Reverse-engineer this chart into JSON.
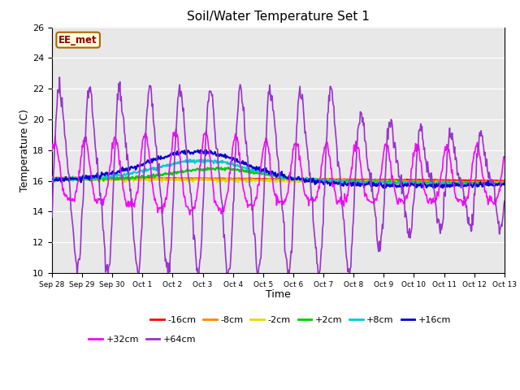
{
  "title": "Soil/Water Temperature Set 1",
  "xlabel": "Time",
  "ylabel": "Temperature (C)",
  "ylim": [
    10,
    26
  ],
  "yticks": [
    10,
    12,
    14,
    16,
    18,
    20,
    22,
    24,
    26
  ],
  "annotation_text": "EE_met",
  "annotation_bgcolor": "#ffffdd",
  "annotation_edgecolor": "#aa6600",
  "annotation_textcolor": "#880000",
  "bg_color": "#e8e8e8",
  "fig_color": "#ffffff",
  "series_order": [
    "-16cm",
    "-8cm",
    "-2cm",
    "+2cm",
    "+8cm",
    "+16cm",
    "+32cm",
    "+64cm"
  ],
  "series": {
    "-16cm": {
      "color": "#ff0000",
      "lw": 1.5
    },
    "-8cm": {
      "color": "#ff8800",
      "lw": 1.5
    },
    "-2cm": {
      "color": "#dddd00",
      "lw": 1.5
    },
    "+2cm": {
      "color": "#00cc00",
      "lw": 1.5
    },
    "+8cm": {
      "color": "#00cccc",
      "lw": 1.5
    },
    "+16cm": {
      "color": "#0000cc",
      "lw": 1.5
    },
    "+32cm": {
      "color": "#ff00ff",
      "lw": 1.2
    },
    "+64cm": {
      "color": "#9933cc",
      "lw": 1.2
    }
  },
  "xtick_labels": [
    "Sep 28",
    "Sep 29",
    "Sep 30",
    "Oct 1",
    "Oct 2",
    "Oct 3",
    "Oct 4",
    "Oct 5",
    "Oct 6",
    "Oct 7",
    "Oct 8",
    "Oct 9",
    "Oct 10",
    "Oct 11",
    "Oct 12",
    "Oct 13"
  ],
  "num_points": 720,
  "legend_row1": [
    "-16cm",
    "-8cm",
    "-2cm",
    "+2cm",
    "+8cm",
    "+16cm"
  ],
  "legend_row2": [
    "+32cm",
    "+64cm"
  ]
}
